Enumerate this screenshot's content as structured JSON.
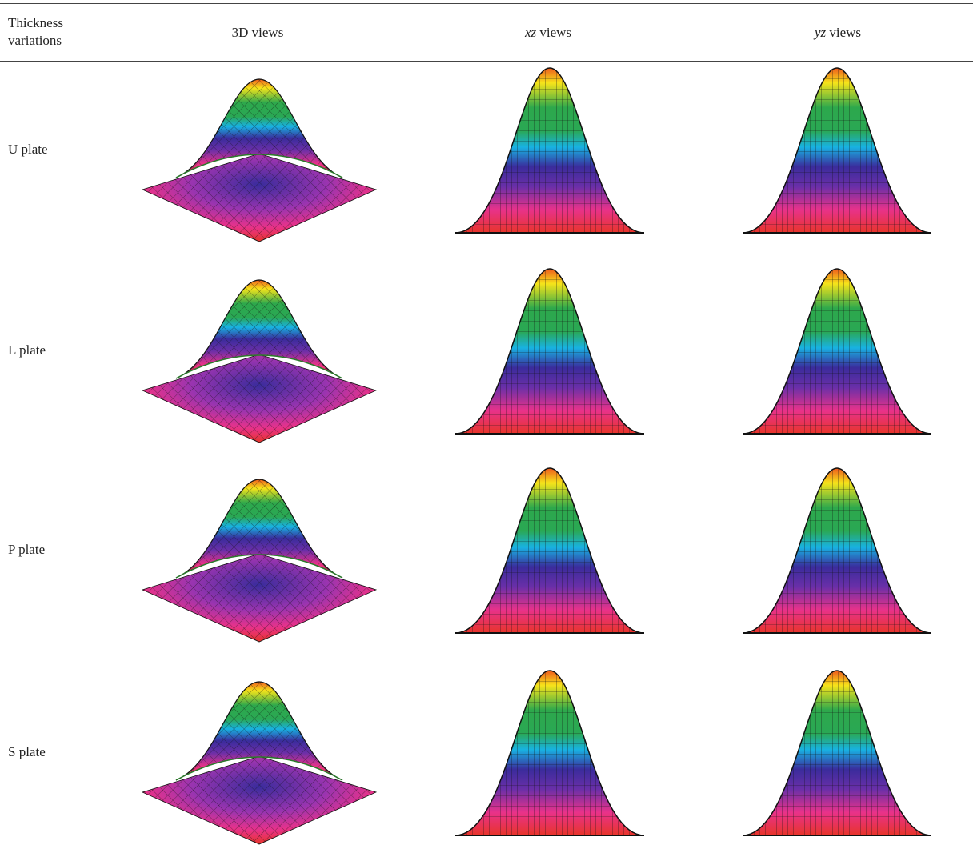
{
  "table": {
    "headers": [
      [
        "Thickness variations"
      ],
      [
        "3D views"
      ],
      [
        "xz",
        "views"
      ],
      [
        "yz",
        "views"
      ]
    ],
    "rows": [
      [
        "U plate"
      ],
      [
        "L plate"
      ],
      [
        "P plate"
      ],
      [
        "S plate"
      ]
    ]
  }
}
